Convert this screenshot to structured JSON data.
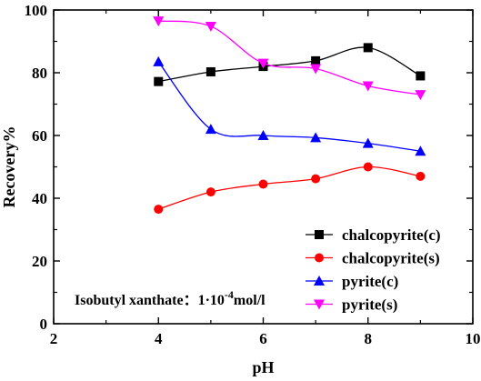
{
  "chart_data": {
    "type": "line",
    "xlabel": "pH",
    "ylabel": "Recovery%",
    "xlim": [
      2,
      10
    ],
    "ylim": [
      0,
      100
    ],
    "x_ticks": [
      2,
      4,
      6,
      8,
      10
    ],
    "y_ticks": [
      0,
      20,
      40,
      60,
      80,
      100
    ],
    "grid": false,
    "legend_position": "bottom-right",
    "x": [
      4,
      5,
      6,
      7,
      8,
      9
    ],
    "series": [
      {
        "name": "chalcopyrite(c)",
        "color": "#000000",
        "marker": "square",
        "values": [
          77.2,
          80.3,
          82.0,
          83.8,
          88.0,
          79.0
        ]
      },
      {
        "name": "chalcopyrite(s)",
        "color": "#ff0000",
        "marker": "circle",
        "values": [
          36.5,
          42.0,
          44.5,
          46.2,
          50.0,
          47.0
        ]
      },
      {
        "name": "pyrite(c)",
        "color": "#0000ff",
        "marker": "triangle-up",
        "values": [
          83.5,
          62.0,
          60.0,
          59.3,
          57.5,
          55.0
        ]
      },
      {
        "name": "pyrite(s)",
        "color": "#ff00ff",
        "marker": "triangle-down",
        "values": [
          96.5,
          94.8,
          83.0,
          81.3,
          75.8,
          73.0
        ]
      }
    ],
    "annotation": {
      "prefix": "Isobutyl xanthate：1·10",
      "superscript": "-4",
      "suffix": "mol/l"
    }
  }
}
